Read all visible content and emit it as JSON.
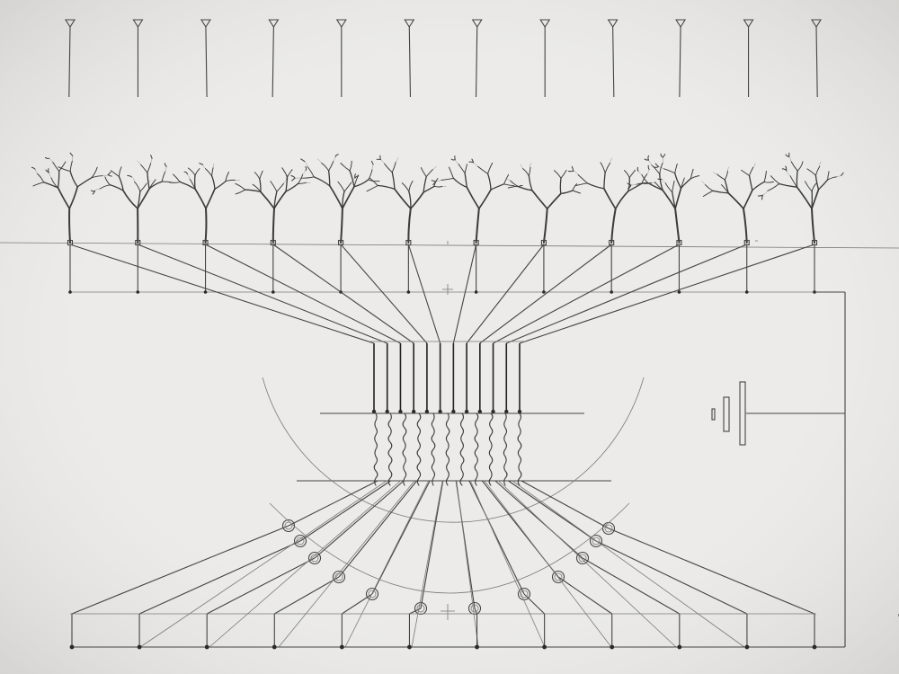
{
  "drawing": {
    "medium": "pencil on paper",
    "paper_color": "#e9e8e6",
    "line_color": "#3b3b3b"
  },
  "antenna_count": 12,
  "tree_count": 12,
  "wavy_fiber_count": 11,
  "ring_node_count": 12,
  "bottom_terminal_count": 12,
  "icons": [
    "cone-marker-icon",
    "tree-icon",
    "ring-node-icon",
    "capacitor-symbol-icon",
    "crosshair-icon"
  ]
}
